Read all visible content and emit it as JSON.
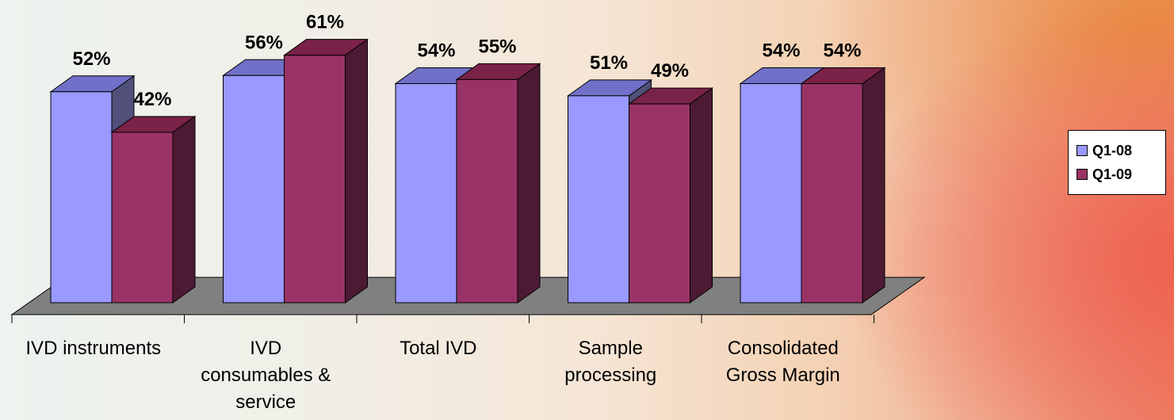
{
  "chart_data": {
    "type": "bar",
    "style": "3d-clustered-column",
    "categories": [
      [
        "IVD instruments"
      ],
      [
        "IVD",
        "consumables &",
        "service"
      ],
      [
        "Total IVD"
      ],
      [
        "Sample",
        "processing"
      ],
      [
        "Consolidated",
        "Gross Margin"
      ]
    ],
    "series": [
      {
        "name": "Q1-08",
        "values": [
          52,
          56,
          54,
          51,
          54
        ],
        "labels": [
          "52%",
          "56%",
          "54%",
          "51%",
          "54%"
        ],
        "color": "#9999ff",
        "top_color": "#7070c8",
        "side_color": "#50507a"
      },
      {
        "name": "Q1-09",
        "values": [
          42,
          61,
          55,
          49,
          54
        ],
        "labels": [
          "42%",
          "61%",
          "55%",
          "49%",
          "54%"
        ],
        "color": "#993366",
        "top_color": "#7a2248",
        "side_color": "#4d1a33"
      }
    ],
    "title": "",
    "xlabel": "",
    "ylabel": "",
    "ylim": [
      0,
      70
    ],
    "grid": false,
    "legend_position": "right"
  },
  "legend": {
    "items": [
      {
        "label": "Q1-08",
        "color": "#9999ff"
      },
      {
        "label": "Q1-09",
        "color": "#993366"
      }
    ]
  }
}
